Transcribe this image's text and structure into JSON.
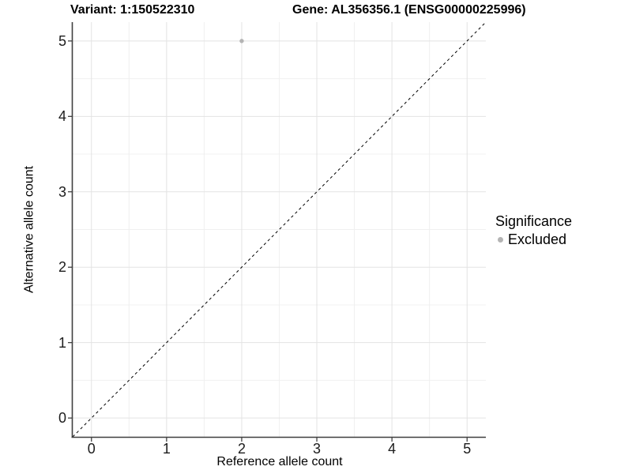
{
  "header": {
    "variant_title": "Variant: 1:150522310",
    "gene_title": "Gene: AL356356.1 (ENSG00000225996)"
  },
  "legend": {
    "title": "Significance",
    "items": [
      {
        "label": "Excluded",
        "color": "#b4b4b4"
      }
    ]
  },
  "chart_data": {
    "type": "scatter",
    "title": "Variant: 1:150522310 / Gene: AL356356.1 (ENSG00000225996)",
    "xlabel": "Reference allele count",
    "ylabel": "Alternative allele count",
    "xlim": [
      -0.25,
      5.25
    ],
    "ylim": [
      -0.25,
      5.25
    ],
    "x_ticks": [
      0,
      1,
      2,
      3,
      4,
      5
    ],
    "y_ticks": [
      0,
      1,
      2,
      3,
      4,
      5
    ],
    "minor_grid_step": 0.5,
    "grid": "major and minor gridlines on",
    "legend_position": "right",
    "series": [
      {
        "name": "Excluded",
        "color": "#b4b4b4",
        "points": [
          {
            "x": 2,
            "y": 5
          }
        ]
      }
    ],
    "reference_line": {
      "slope": 1,
      "intercept": 0,
      "style": "dashed",
      "color": "#000000"
    }
  },
  "colors": {
    "background": "#ffffff",
    "grid_major": "#e3e3e3",
    "grid_minor": "#f0f0f0",
    "axis_line": "#3f3f3f",
    "tick_mark": "#333333",
    "tick_text": "#1c1c1c",
    "point": "#b4b4b4"
  }
}
